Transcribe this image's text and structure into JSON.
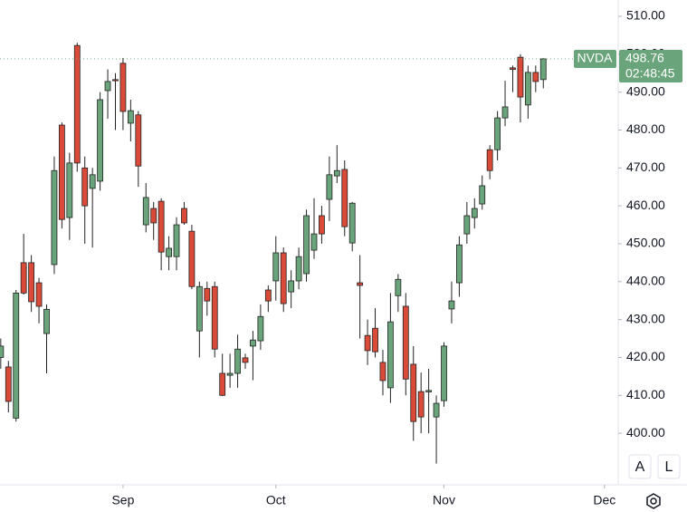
{
  "chart_data": {
    "type": "candlestick",
    "symbol": "NVDA",
    "last_price": 498.76,
    "countdown": "02:48:45",
    "buttons": [
      "A",
      "L"
    ],
    "up_color": "#6aa47a",
    "down_color": "#d94a38",
    "open": [
      420,
      417.5,
      404,
      445,
      445,
      439.7,
      426.3,
      444.5,
      481.3,
      456.9,
      502.3,
      470,
      464.6,
      466.5,
      490.4,
      493.3,
      497.6,
      481.8,
      484,
      455,
      459.3,
      461.2,
      446.6,
      446.6,
      459.3,
      453.3,
      427,
      438.2,
      438.7,
      415.8,
      415.3,
      415.8,
      419.9,
      423,
      424.4,
      437.8,
      440.2,
      447.6,
      437.3,
      440.2,
      442.1,
      448.3,
      457.4,
      461.7,
      467.9,
      469.6,
      450.2,
      439.7,
      425.8,
      427.7,
      418.7,
      412,
      436.3,
      433.5,
      418.2,
      411,
      410.9,
      404.3,
      408.6,
      432.8,
      439.7,
      452.6,
      456.9,
      460.5,
      474.8,
      474.8,
      483.2,
      496.4,
      499.2,
      486.6,
      495.2,
      493.3
    ],
    "high": [
      425,
      419.1,
      437.8,
      452.6,
      447,
      441,
      434,
      473,
      482,
      474,
      503,
      473,
      470,
      490,
      496,
      495,
      499,
      488,
      485,
      466,
      461,
      462,
      452,
      457,
      461,
      455,
      440,
      440,
      440,
      421,
      421,
      426,
      421,
      427,
      434,
      439,
      452,
      449,
      443,
      449,
      459,
      462,
      460,
      473,
      476,
      472,
      461,
      447,
      430,
      433,
      422,
      437,
      442,
      437,
      423,
      416,
      417,
      410,
      424,
      440,
      452,
      461,
      462,
      468,
      476,
      485,
      493,
      497,
      500,
      497,
      497,
      499
    ],
    "low": [
      417,
      405.5,
      403.1,
      436.6,
      432,
      429,
      415.8,
      442,
      454,
      451,
      469,
      450,
      449,
      464,
      483,
      480,
      480,
      477,
      465,
      453,
      451,
      443,
      443,
      443,
      455,
      438,
      420,
      431,
      420,
      409.8,
      412,
      412,
      417,
      414,
      422,
      432,
      435,
      432,
      433,
      438,
      440,
      446,
      450,
      456,
      466,
      452,
      448,
      425,
      418,
      420,
      410,
      408,
      432,
      410,
      398,
      400,
      400,
      392,
      407,
      429,
      436,
      450,
      454,
      459,
      467,
      472,
      481,
      490,
      482,
      483,
      490,
      491
    ],
    "close": [
      423,
      408.4,
      437,
      437,
      434.7,
      433.5,
      432.7,
      469.3,
      456.4,
      471.3,
      471.3,
      460,
      468.2,
      488,
      492.8,
      493,
      484.9,
      485.1,
      470.5,
      462.2,
      455.5,
      447.8,
      448.8,
      455,
      455.5,
      438.7,
      438.7,
      434.9,
      422.2,
      410,
      415.8,
      422.2,
      418.7,
      424.6,
      430.8,
      434.9,
      447.6,
      434.2,
      440.2,
      446.6,
      457.4,
      452.6,
      452.6,
      468.2,
      469.3,
      454.5,
      460.7,
      439,
      421.8,
      421.5,
      413.9,
      429.4,
      440.6,
      414.3,
      403.1,
      404.3,
      411.3,
      407.9,
      423,
      434.9,
      449.7,
      457.4,
      459.3,
      465.3,
      469.3,
      483.2,
      486.1,
      496,
      488.7,
      495.2,
      492.8,
      498.76
    ],
    "xlim": [
      -0.1,
      80.8
    ],
    "xticks": [
      {
        "value": 16,
        "label": "Sep"
      },
      {
        "value": 36,
        "label": "Oct"
      },
      {
        "value": 58,
        "label": "Nov"
      },
      {
        "value": 79,
        "label": "Dec"
      }
    ],
    "ylim": [
      386.4,
      514.3
    ],
    "yticks": [
      {
        "value": 400,
        "label": "400.00"
      },
      {
        "value": 410,
        "label": "410.00"
      },
      {
        "value": 420,
        "label": "420.00"
      },
      {
        "value": 430,
        "label": "430.00"
      },
      {
        "value": 440,
        "label": "440.00"
      },
      {
        "value": 450,
        "label": "450.00"
      },
      {
        "value": 460,
        "label": "460.00"
      },
      {
        "value": 470,
        "label": "470.00"
      },
      {
        "value": 480,
        "label": "480.00"
      },
      {
        "value": 490,
        "label": "490.00"
      },
      {
        "value": 500,
        "label": "500.00"
      },
      {
        "value": 510,
        "label": "510.00"
      }
    ]
  }
}
